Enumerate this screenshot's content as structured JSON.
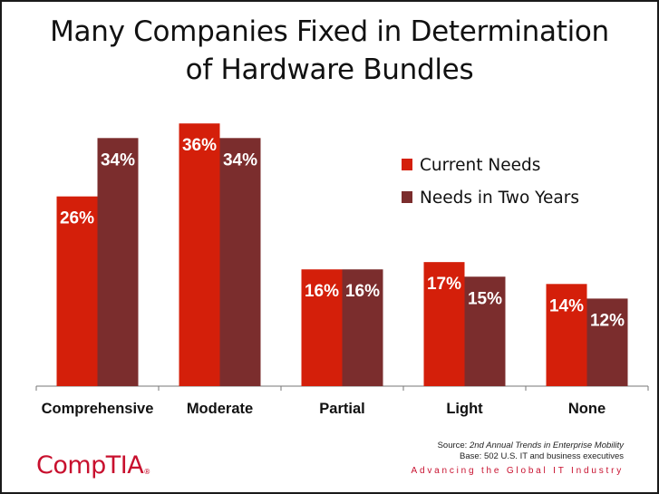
{
  "title": {
    "line1": "Many Companies Fixed in Determination",
    "line2": "of Hardware Bundles"
  },
  "chart_data": {
    "type": "bar",
    "categories": [
      "Comprehensive",
      "Moderate",
      "Partial",
      "Light",
      "None"
    ],
    "series": [
      {
        "name": "Current Needs",
        "values": [
          26,
          36,
          16,
          17,
          14
        ],
        "color": "#d41f0a"
      },
      {
        "name": "Needs in Two Years",
        "values": [
          34,
          34,
          16,
          15,
          12
        ],
        "color": "#7b2d2d"
      }
    ],
    "value_suffix": "%",
    "ylim": [
      0,
      40
    ],
    "grid": false,
    "legend_position": "top-right",
    "xlabel": "",
    "ylabel": ""
  },
  "source": {
    "prefix": "Source: ",
    "title": "2nd Annual Trends in Enterprise Mobility",
    "base": "Base: 502 U.S. IT and business executives"
  },
  "footer": {
    "tagline": "Advancing the Global IT Industry",
    "logo": "CompTIA",
    "logo_mark": "®"
  }
}
